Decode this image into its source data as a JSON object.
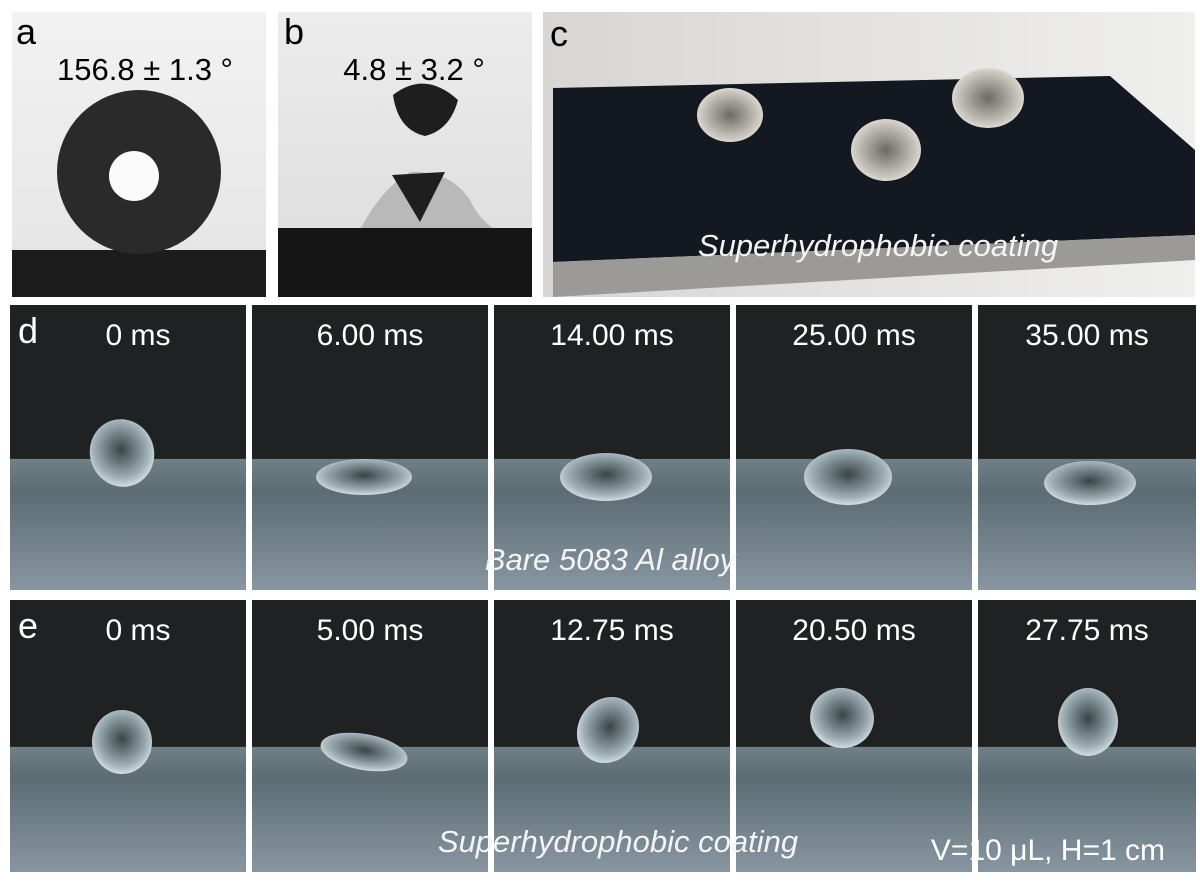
{
  "panels": [
    {
      "label": "a",
      "caption": "156.8 ± 1.3 °"
    },
    {
      "label": "b",
      "caption": "4.8 ± 3.2 °"
    },
    {
      "label": "c",
      "caption": "Superhydrophobic coating"
    }
  ],
  "rows": [
    {
      "label": "d",
      "frames": [
        "0 ms",
        "6.00 ms",
        "14.00 ms",
        "25.00 ms",
        "35.00 ms"
      ],
      "caption": "Bare 5083 Al alloy"
    },
    {
      "label": "e",
      "frames": [
        "0 ms",
        "5.00 ms",
        "12.75 ms",
        "20.50 ms",
        "27.75 ms"
      ],
      "caption": "Superhydrophobic coating",
      "note": "V=10 μL, H=1 cm"
    }
  ]
}
